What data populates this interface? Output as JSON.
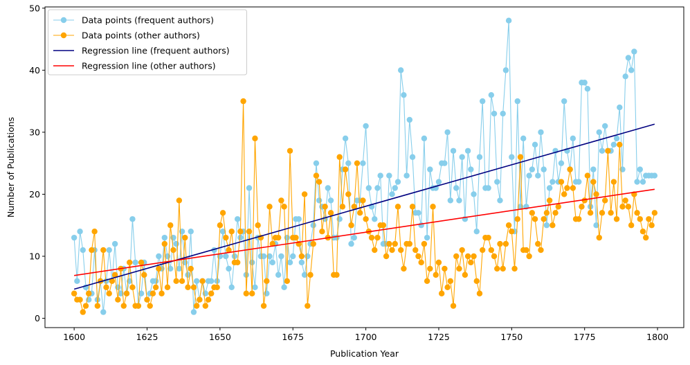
{
  "chart_data": {
    "type": "line",
    "title": "",
    "xlabel": "Publication Year",
    "ylabel": "Number of Publications",
    "xlim": [
      1590,
      1809
    ],
    "ylim": [
      -1.5,
      50.2
    ],
    "xticks": [
      1600,
      1625,
      1650,
      1675,
      1700,
      1725,
      1750,
      1775,
      1800
    ],
    "yticks": [
      0,
      10,
      20,
      30,
      40,
      50
    ],
    "grid": false,
    "legend_position": "top-left",
    "x_start": 1600,
    "series": [
      {
        "name": "Data points (frequent authors)",
        "color": "#87CEEB",
        "marker": "circle",
        "values": [
          13,
          6,
          14,
          11,
          5,
          3,
          4,
          11,
          3,
          6,
          1,
          6,
          11,
          6,
          12,
          5,
          4,
          8,
          4,
          6,
          16,
          9,
          2,
          4,
          9,
          3,
          4,
          6,
          6,
          10,
          8,
          13,
          10,
          8,
          13,
          12,
          8,
          14,
          9,
          7,
          14,
          1,
          6,
          3,
          6,
          4,
          6,
          6,
          11,
          6,
          10,
          14,
          10,
          8,
          5,
          10,
          16,
          13,
          14,
          7,
          21,
          9,
          5,
          13,
          10,
          10,
          4,
          10,
          9,
          12,
          7,
          10,
          5,
          13,
          9,
          10,
          16,
          16,
          9,
          7,
          10,
          12,
          15,
          25,
          19,
          18,
          16,
          21,
          19,
          13,
          13,
          16,
          24,
          29,
          25,
          12,
          13,
          19,
          19,
          25,
          31,
          21,
          18,
          16,
          21,
          23,
          12,
          12,
          23,
          20,
          21,
          22,
          40,
          36,
          23,
          32,
          26,
          17,
          17,
          15,
          29,
          13,
          24,
          21,
          21,
          22,
          25,
          25,
          30,
          19,
          27,
          21,
          19,
          26,
          16,
          27,
          24,
          20,
          14,
          26,
          35,
          21,
          21,
          36,
          33,
          22,
          19,
          33,
          40,
          48,
          26,
          14,
          35,
          18,
          29,
          18,
          23,
          24,
          28,
          23,
          30,
          24,
          15,
          21,
          22,
          27,
          22,
          25,
          35,
          27,
          24,
          29,
          22,
          22,
          38,
          38,
          37,
          18,
          24,
          15,
          30,
          27,
          31,
          27,
          27,
          28,
          29,
          34,
          24,
          39,
          42,
          40,
          43,
          22,
          24,
          22,
          23,
          23,
          23,
          23
        ]
      },
      {
        "name": "Data points (other authors)",
        "color": "#FFA500",
        "marker": "circle",
        "values": [
          4,
          3,
          3,
          1,
          2,
          4,
          11,
          14,
          2,
          6,
          11,
          5,
          4,
          6,
          7,
          3,
          8,
          2,
          4,
          9,
          5,
          2,
          2,
          9,
          7,
          3,
          2,
          4,
          5,
          8,
          4,
          12,
          5,
          15,
          11,
          6,
          19,
          6,
          13,
          5,
          8,
          5,
          2,
          3,
          6,
          2,
          3,
          4,
          5,
          5,
          15,
          17,
          13,
          11,
          14,
          9,
          9,
          14,
          35,
          4,
          14,
          4,
          29,
          15,
          13,
          2,
          6,
          18,
          12,
          13,
          13,
          19,
          18,
          6,
          27,
          13,
          13,
          12,
          10,
          20,
          2,
          7,
          12,
          23,
          22,
          14,
          18,
          13,
          17,
          7,
          7,
          26,
          18,
          24,
          20,
          15,
          18,
          25,
          17,
          19,
          16,
          14,
          13,
          11,
          13,
          15,
          15,
          10,
          12,
          11,
          12,
          18,
          11,
          8,
          12,
          12,
          18,
          11,
          10,
          9,
          12,
          6,
          8,
          18,
          7,
          9,
          4,
          8,
          5,
          6,
          2,
          10,
          8,
          11,
          7,
          10,
          9,
          10,
          6,
          4,
          11,
          13,
          13,
          11,
          10,
          8,
          12,
          8,
          12,
          15,
          14,
          8,
          16,
          26,
          11,
          11,
          10,
          17,
          16,
          12,
          11,
          16,
          17,
          19,
          15,
          17,
          18,
          22,
          20,
          21,
          24,
          21,
          16,
          16,
          18,
          19,
          23,
          17,
          22,
          20,
          13,
          17,
          19,
          27,
          17,
          22,
          16,
          28,
          18,
          19,
          18,
          15,
          20,
          17,
          16,
          14,
          13,
          16,
          15,
          17
        ]
      },
      {
        "name": "Regression line (frequent authors)",
        "color": "#000080",
        "type": "line",
        "x": [
          1600,
          1799
        ],
        "values": [
          4.7,
          31.3
        ]
      },
      {
        "name": "Regression line (other authors)",
        "color": "#FF0000",
        "type": "line",
        "x": [
          1600,
          1799
        ],
        "values": [
          6.9,
          20.8
        ]
      }
    ]
  }
}
